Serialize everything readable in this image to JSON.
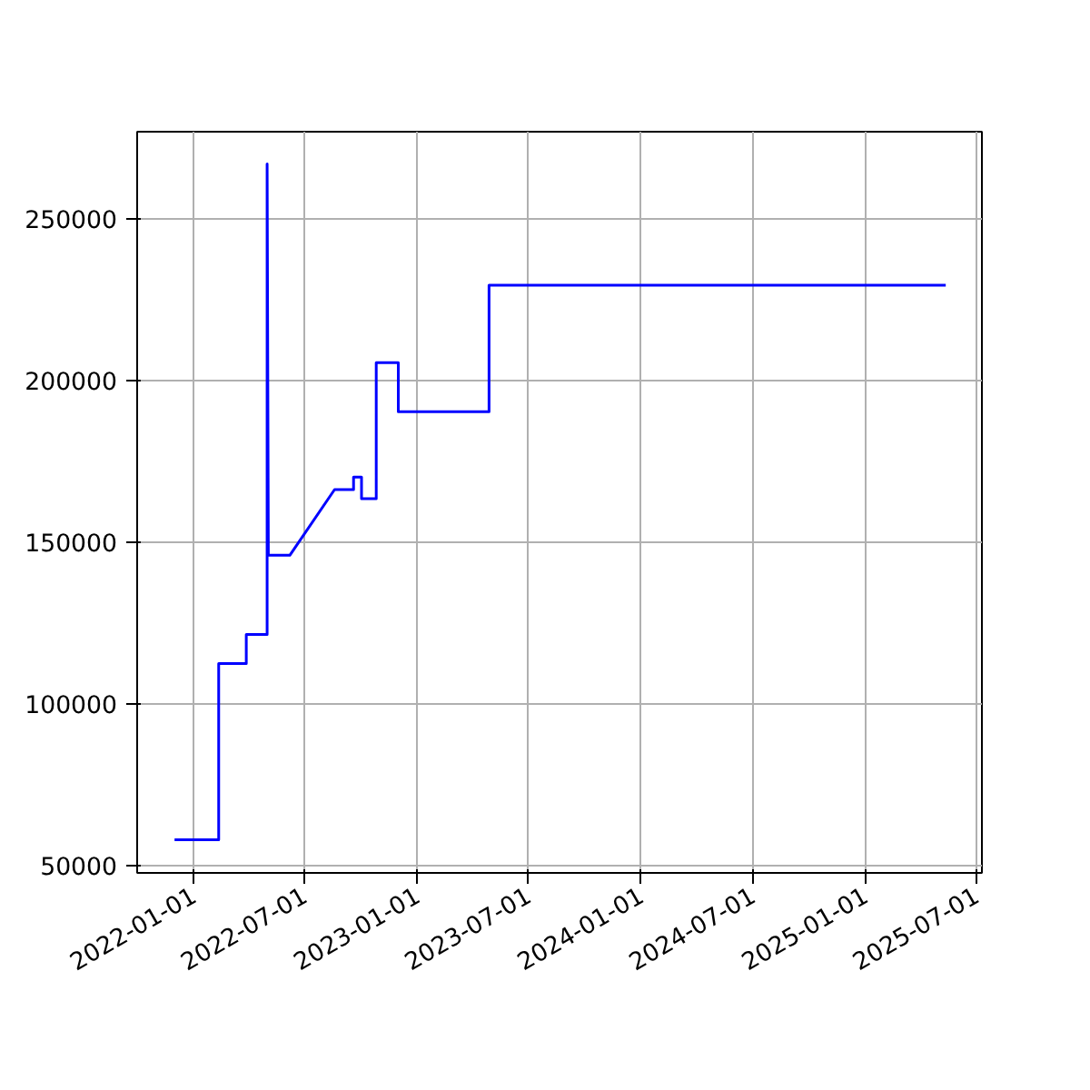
{
  "chart_data": {
    "type": "line",
    "x": [
      "2021-12-01",
      "2022-02-11",
      "2022-02-11",
      "2022-03-28",
      "2022-03-28",
      "2022-05-01",
      "2022-05-01",
      "2022-05-03",
      "2022-06-07",
      "2022-08-19",
      "2022-09-19",
      "2022-09-19",
      "2022-10-02",
      "2022-10-02",
      "2022-10-26",
      "2022-10-26",
      "2022-12-01",
      "2022-12-01",
      "2023-04-28",
      "2023-04-28",
      "2025-05-12"
    ],
    "series": [
      {
        "color": "#0000ff",
        "values": [
          58000,
          58000,
          112500,
          112500,
          121500,
          121500,
          267000,
          146000,
          146000,
          166300,
          166300,
          170200,
          170200,
          163500,
          163500,
          205600,
          205600,
          190400,
          190400,
          229500,
          229500
        ]
      }
    ],
    "xlim": [
      "2021-10-01",
      "2025-07-10"
    ],
    "xticks": [
      "2022-01-01",
      "2022-07-01",
      "2023-01-01",
      "2023-07-01",
      "2024-01-01",
      "2024-07-01",
      "2025-01-01",
      "2025-07-01"
    ],
    "ylim": [
      47750,
      277000
    ],
    "yticks": [
      50000,
      100000,
      150000,
      200000,
      250000
    ],
    "grid": true,
    "marker": "none",
    "line_style": "solid"
  }
}
